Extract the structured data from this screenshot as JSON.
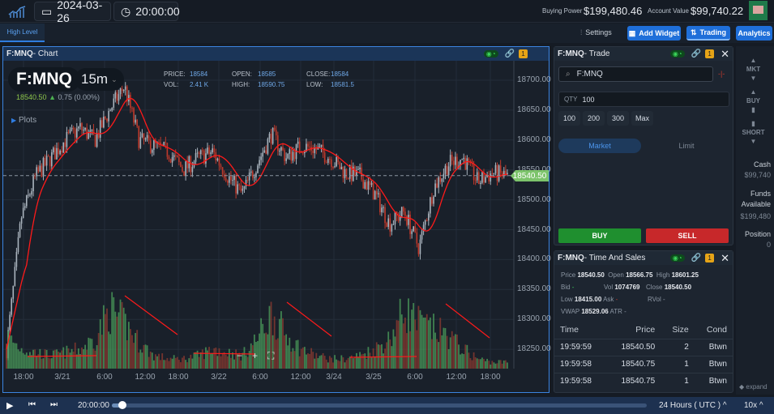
{
  "topbar": {
    "date": "2024-03-26",
    "time": "20:00:00",
    "buying_power_label": "Buying Power",
    "buying_power": "$199,480.46",
    "account_value_label": "Account Value",
    "account_value": "$99,740.22"
  },
  "tabs": [
    {
      "label": "High Level",
      "active": true
    }
  ],
  "toolbar": {
    "settings": "Settings",
    "add_widget": "Add Widget",
    "trading": "Trading",
    "analytics": "Analytics"
  },
  "chart": {
    "symbol_title": "F:MNQ",
    "title_suffix": " - Chart",
    "symbol": "F:MNQ",
    "interval": "15m",
    "last": "18540.50",
    "change": "0.75 (0.00%)",
    "plots": "Plots",
    "badge": "1",
    "ohlc": {
      "price_label": "PRICE:",
      "price": "18584",
      "open_label": "OPEN:",
      "open": "18585",
      "close_label": "CLOSE:",
      "close": "18584",
      "vol_label": "VOL:",
      "vol": "2.41 K",
      "high_label": "HIGH:",
      "high": "18590.75",
      "low_label": "LOW:",
      "low": "18581.5"
    },
    "y_ticks": [
      "18700.00",
      "18650.00",
      "18600.00",
      "18550.00",
      "18500.00",
      "18450.00",
      "18400.00",
      "18350.00",
      "18300.00",
      "18250.00"
    ],
    "x_ticks": [
      "18:00",
      "3/21",
      "6:00",
      "12:00",
      "18:00",
      "3/22",
      "6:00",
      "12:00",
      "3/24",
      "3/25",
      "6:00",
      "12:00",
      "18:00"
    ],
    "price_tag": "18540.50",
    "close_path": [
      18250,
      18470,
      18540,
      18570,
      18600,
      18620,
      18600,
      18650,
      18690,
      18600,
      18590,
      18580,
      18550,
      18570,
      18580,
      18540,
      18510,
      18560,
      18610,
      18570,
      18590,
      18585,
      18570,
      18545,
      18540,
      18510,
      18460,
      18480,
      18420,
      18520,
      18560,
      18570,
      18530,
      18545,
      18540
    ],
    "volume_path": [
      0.5,
      0.3,
      0.25,
      0.2,
      0.25,
      0.3,
      0.45,
      0.9,
      0.7,
      0.4,
      0.2,
      0.15,
      0.15,
      0.2,
      0.3,
      0.25,
      0.2,
      0.45,
      0.85,
      0.5,
      0.3,
      0.2,
      0.15,
      0.15,
      0.2,
      0.3,
      0.45,
      0.9,
      0.7,
      0.6,
      0.5,
      0.3,
      0.15,
      0.1,
      0.1
    ],
    "colors": {
      "up": "#4a9b5a",
      "down": "#c0392b",
      "ma": "#ff1a1a",
      "tag": "#7cc36b"
    }
  },
  "trade": {
    "title_symbol": "F:MNQ",
    "title_suffix": " - Trade",
    "badge": "1",
    "symbol": "F:MNQ",
    "qty_label": "QTY",
    "qty": "100",
    "presets": [
      "100",
      "200",
      "300",
      "Max"
    ],
    "order_types": [
      "Market",
      "Limit"
    ],
    "buy": "BUY",
    "sell": "SELL"
  },
  "side": {
    "mkt": "MKT",
    "buy": "BUY",
    "short": "SHORT",
    "cash_label": "Cash",
    "cash": "$99,740",
    "funds_label": "Funds Available",
    "funds": "$199,480",
    "position_label": "Position",
    "position": "0",
    "expand": "expand"
  },
  "tas": {
    "title_symbol": "F:MNQ",
    "title_suffix": " - Time And Sales",
    "badge": "1",
    "stats": {
      "price": "18540.50",
      "open": "18566.75",
      "high": "18601.25",
      "bid": "-",
      "vol": "1074769",
      "close": "18540.50",
      "low": "18415.00",
      "ask": "-",
      "rvol": "-",
      "vwap": "18529.06",
      "atr": "-"
    },
    "columns": [
      "Time",
      "Price",
      "Size",
      "Cond"
    ],
    "rows": [
      [
        "19:59:59",
        "18540.50",
        "2",
        "Btwn"
      ],
      [
        "19:59:58",
        "18540.75",
        "1",
        "Btwn"
      ],
      [
        "19:59:58",
        "18540.75",
        "1",
        "Btwn"
      ]
    ]
  },
  "playback": {
    "time": "20:00:00",
    "progress": 0.02,
    "session": "24 Hours ( UTC )",
    "speed": "10x"
  }
}
